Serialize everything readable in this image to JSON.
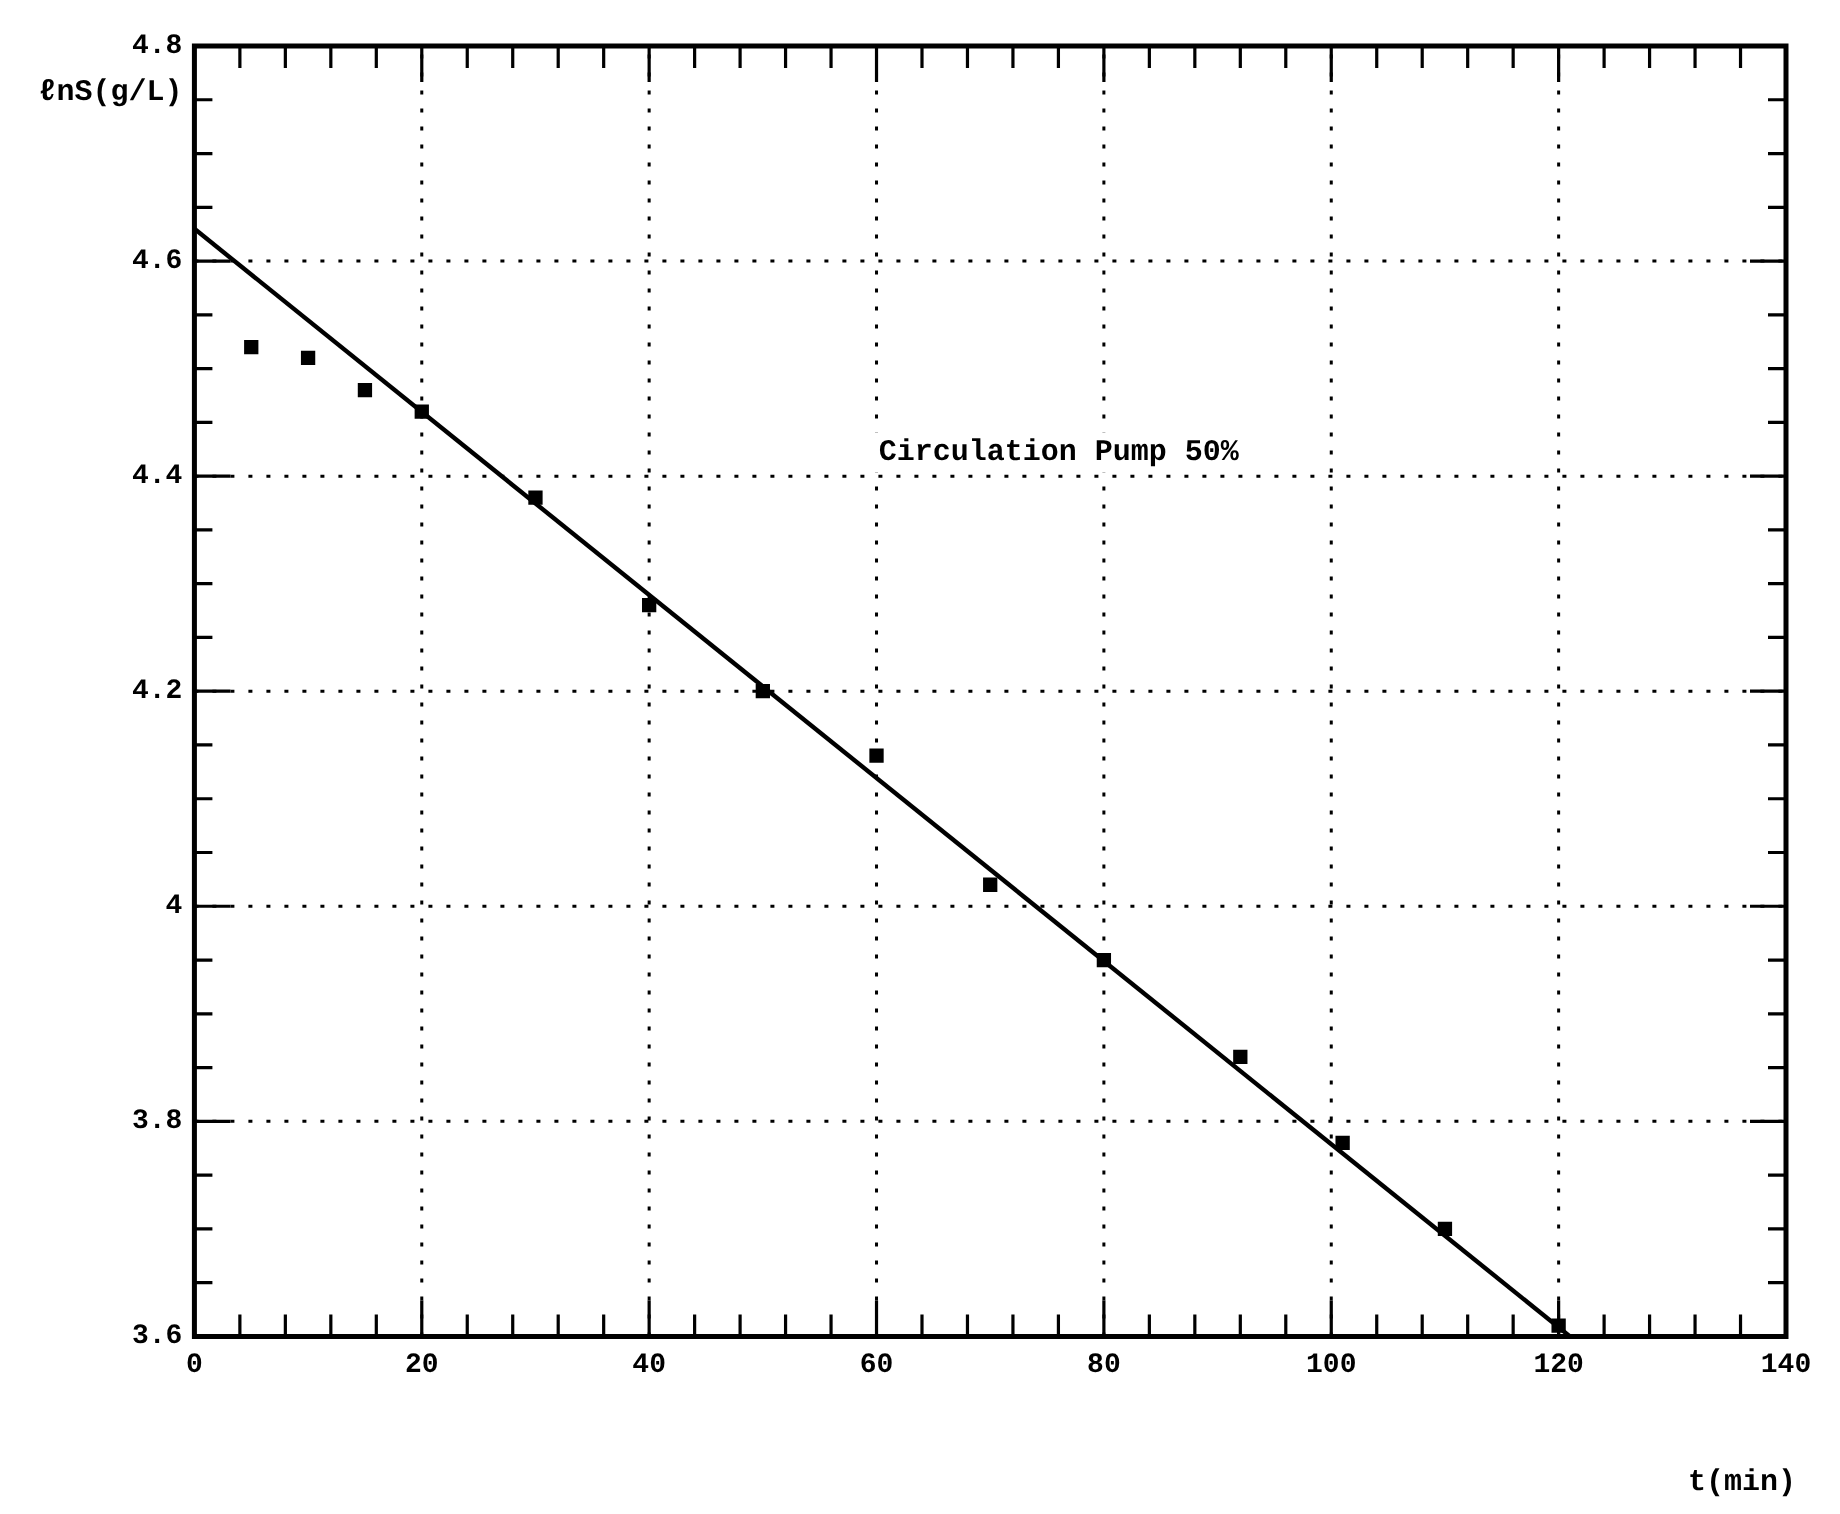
{
  "chart_data": {
    "type": "scatter",
    "xlabel": "t(min)",
    "ylabel": "ℓnS(g/L)",
    "annotations": [
      "Circulation Pump 50%"
    ],
    "xlim": [
      0,
      140
    ],
    "xticks": [
      0,
      20,
      40,
      60,
      80,
      100,
      120,
      140
    ],
    "ylim": [
      3.6,
      4.8
    ],
    "yticks": [
      3.6,
      3.8,
      4,
      4.2,
      4.4,
      4.6,
      4.8
    ],
    "grid": true,
    "legend": false,
    "marker": "square",
    "series": [
      {
        "color": "#000000",
        "x": [
          5,
          10,
          15,
          20,
          30,
          40,
          50,
          60,
          70,
          80,
          92,
          101,
          110,
          120
        ],
        "values": [
          4.52,
          4.51,
          4.48,
          4.46,
          4.38,
          4.28,
          4.2,
          4.14,
          4.02,
          3.95,
          3.86,
          3.78,
          3.7,
          3.61
        ]
      },
      {
        "type": "line",
        "color": "#000000",
        "marker": "none",
        "line_style": "solid",
        "x": [
          0,
          121
        ],
        "values": [
          4.63,
          3.6
        ]
      }
    ]
  }
}
